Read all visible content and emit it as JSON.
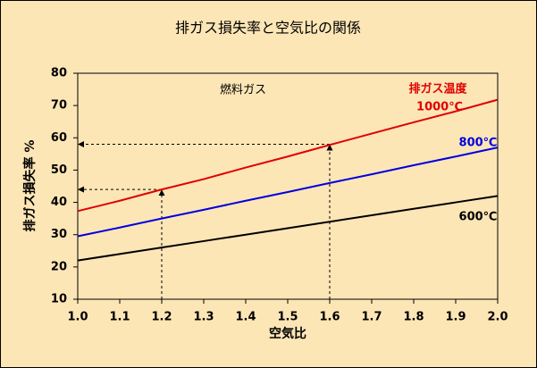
{
  "chart_data": {
    "type": "line",
    "title": "排ガス損失率と空気比の関係",
    "xlabel": "空気比",
    "ylabel": "排ガス損失率 %",
    "x": [
      1.0,
      1.1,
      1.2,
      1.3,
      1.4,
      1.5,
      1.6,
      1.7,
      1.8,
      1.9,
      2.0
    ],
    "series": [
      {
        "name": "1000℃",
        "color": "#e00000",
        "values": [
          37.3,
          40.5,
          44,
          47.2,
          50.8,
          54.2,
          57.8,
          61.3,
          64.8,
          68.2,
          71.8
        ]
      },
      {
        "name": "800℃",
        "color": "#0000e0",
        "values": [
          29.5,
          32.2,
          35,
          37.7,
          40.5,
          43.2,
          46,
          48.7,
          51.5,
          54.2,
          57
        ]
      },
      {
        "name": "600℃",
        "color": "#000000",
        "values": [
          22,
          24,
          26,
          28,
          30,
          32,
          34,
          36,
          38,
          40,
          42
        ]
      }
    ],
    "annotations": [
      {
        "text": "燃料ガス",
        "color": "#000000"
      },
      {
        "text": "排ガス温度",
        "color": "#e00000"
      }
    ],
    "guides": [
      {
        "x": 1.2,
        "y": 44
      },
      {
        "x": 1.6,
        "y": 58
      }
    ],
    "xlim": [
      1.0,
      2.0
    ],
    "xticks": [
      {
        "value": 1,
        "label": "1.0"
      },
      1.1,
      1.2,
      1.3,
      1.4,
      1.5,
      1.6,
      1.7,
      1.8,
      1.9,
      {
        "value": 2,
        "label": "2.0"
      }
    ],
    "ylim": [
      10,
      80
    ],
    "yticks": [
      10,
      20,
      30,
      40,
      50,
      60,
      70,
      80
    ],
    "grid": false
  }
}
